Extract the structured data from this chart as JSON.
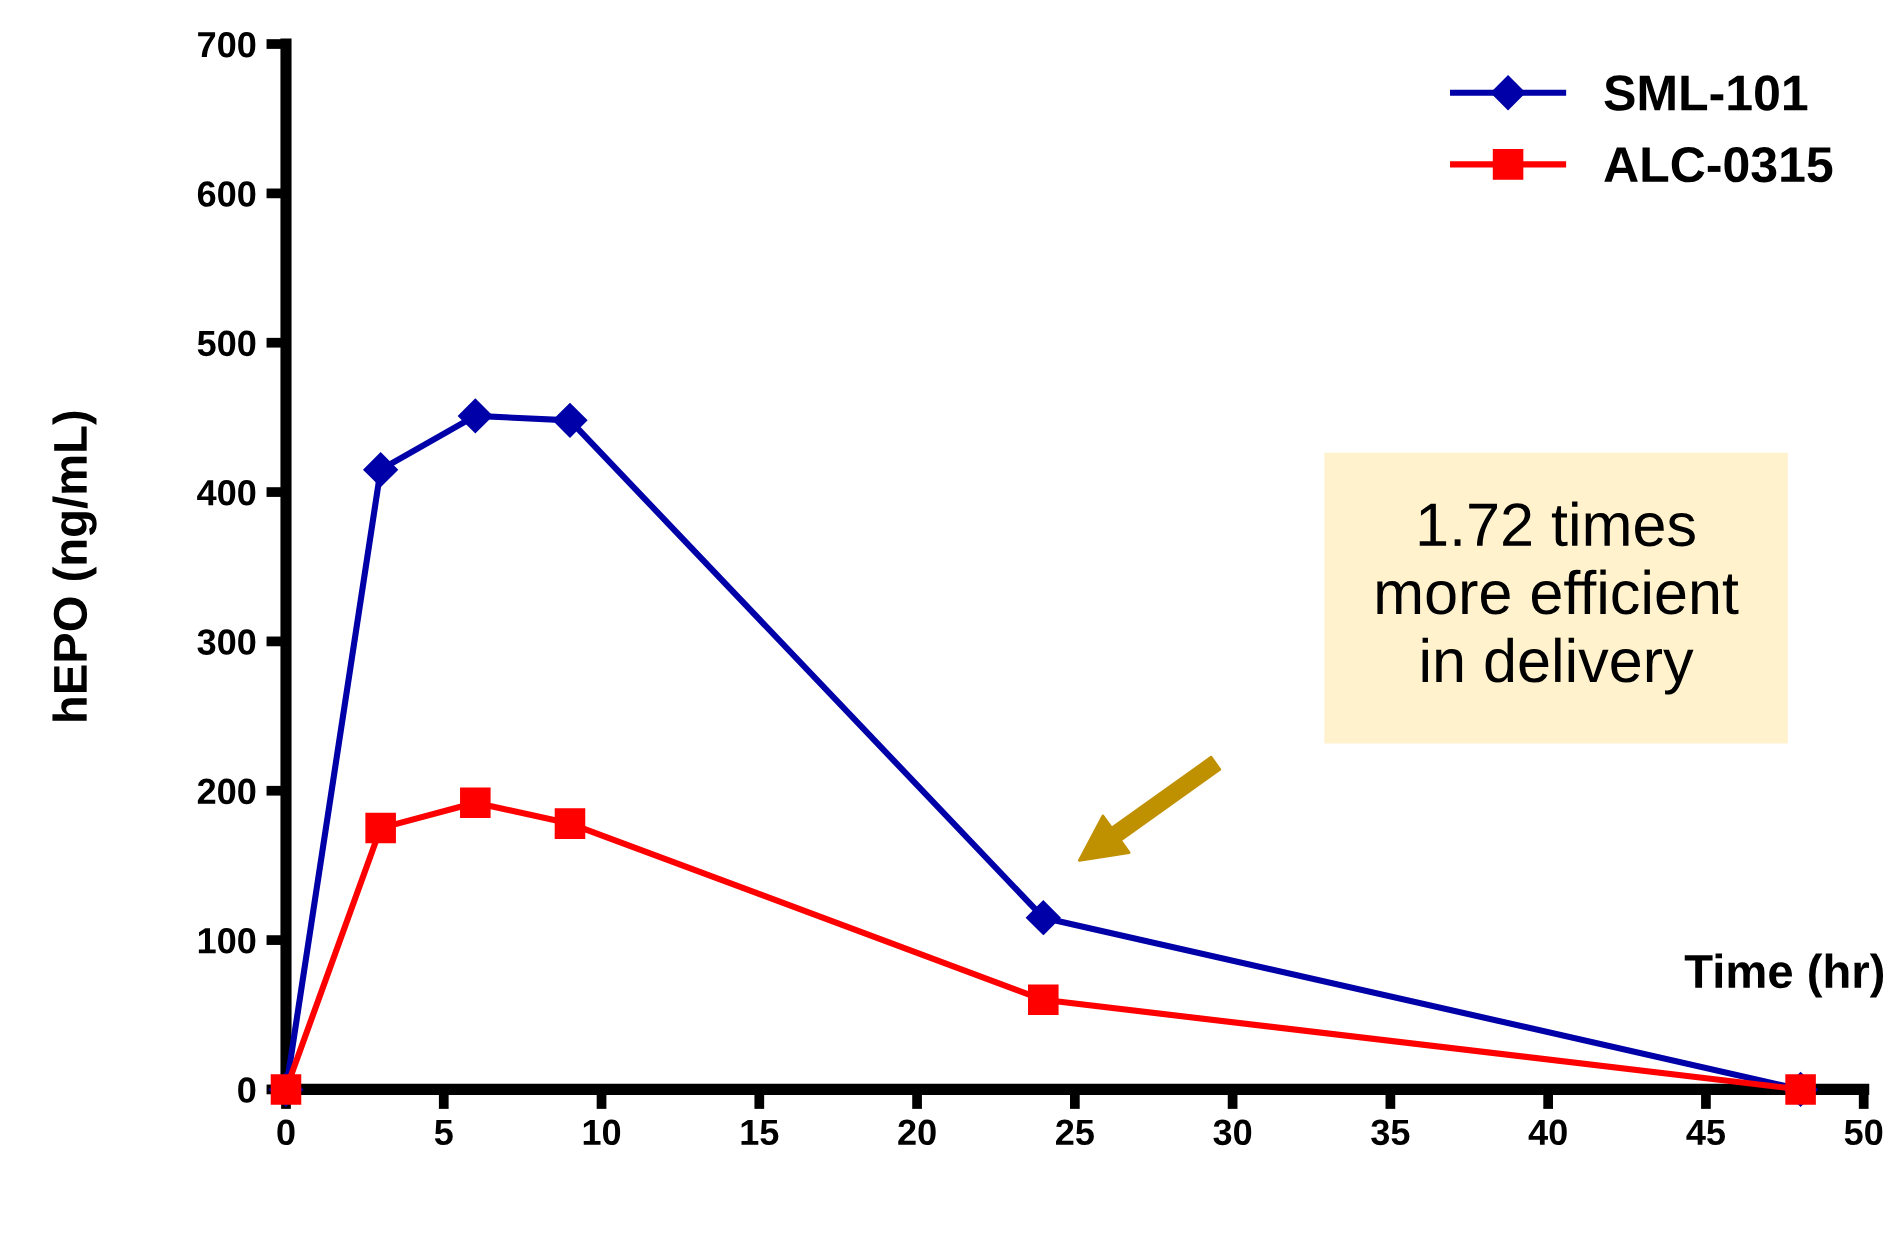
{
  "chart_data": {
    "type": "line",
    "xlabel": "Time (hr)",
    "ylabel": "hEPO (ng/mL)",
    "x": [
      0,
      3,
      6,
      9,
      24,
      48
    ],
    "series": [
      {
        "name": "SML-101",
        "color": "#0000a8",
        "marker": "diamond",
        "values": [
          0,
          415,
          451,
          448,
          115,
          0
        ]
      },
      {
        "name": "ALC-0315",
        "color": "#ff0000",
        "marker": "square",
        "values": [
          0,
          175,
          192,
          178,
          60,
          0
        ]
      }
    ],
    "xlim": [
      0,
      50
    ],
    "xticks": [
      0,
      5,
      10,
      15,
      20,
      25,
      30,
      35,
      40,
      45,
      50
    ],
    "ylim": [
      0,
      700
    ],
    "yticks": [
      0,
      100,
      200,
      300,
      400,
      500,
      600,
      700
    ],
    "grid": false,
    "legend": "top right",
    "line_style": "solid",
    "annotations": [
      "1.72 times\nmore efficient\nin delivery"
    ]
  }
}
